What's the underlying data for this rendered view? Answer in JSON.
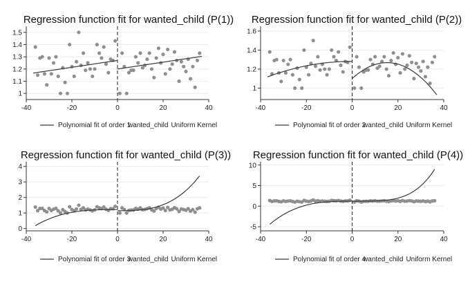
{
  "chart_data": [
    {
      "type": "scatter",
      "title": "Regression function fit for wanted_child (P(1))",
      "order": 1,
      "cutoff": 0,
      "xlim": [
        -40,
        40
      ],
      "ylim": [
        0.95,
        1.55
      ],
      "xticks": [
        -40,
        -20,
        0,
        20,
        40
      ],
      "xtick_labels": [
        "-40",
        "-20",
        "0",
        "20",
        "40"
      ],
      "yticks": [
        1,
        1.1,
        1.2,
        1.3,
        1.4,
        1.5
      ],
      "ytick_labels": [
        "1",
        "1.1",
        "1.2",
        "1.3",
        "1.4",
        "1.5"
      ],
      "legend": [
        "Polynomial fit of order 1",
        "wanted_child",
        "Uniform Kernel"
      ],
      "points": [
        [
          -36,
          1.38
        ],
        [
          -35,
          1.15
        ],
        [
          -34,
          1.29
        ],
        [
          -33,
          1.3
        ],
        [
          -32,
          1.16
        ],
        [
          -31,
          1.07
        ],
        [
          -30,
          1.29
        ],
        [
          -29,
          1.16
        ],
        [
          -28,
          1.25
        ],
        [
          -27,
          1.3
        ],
        [
          -26,
          1.14
        ],
        [
          -25,
          1.0
        ],
        [
          -24,
          1.21
        ],
        [
          -23,
          1.09
        ],
        [
          -22,
          1.0
        ],
        [
          -21,
          1.4
        ],
        [
          -20,
          1.22
        ],
        [
          -19,
          1.14
        ],
        [
          -18,
          1.26
        ],
        [
          -17,
          1.5
        ],
        [
          -16,
          1.23
        ],
        [
          -15,
          1.33
        ],
        [
          -14,
          1.19
        ],
        [
          -13,
          1.25
        ],
        [
          -12,
          1.2
        ],
        [
          -11,
          1.14
        ],
        [
          -10,
          1.2
        ],
        [
          -9,
          1.4
        ],
        [
          -8,
          1.33
        ],
        [
          -7,
          1.29
        ],
        [
          -6,
          1.38
        ],
        [
          -5,
          1.24
        ],
        [
          -4,
          1.17
        ],
        [
          -3,
          1.28
        ],
        [
          -2,
          1.27
        ],
        [
          -1,
          1.43
        ],
        [
          1,
          1.0
        ],
        [
          2,
          1.33
        ],
        [
          3,
          1.22
        ],
        [
          4,
          1.0
        ],
        [
          5,
          1.17
        ],
        [
          6,
          1.19
        ],
        [
          7,
          1.19
        ],
        [
          8,
          1.3
        ],
        [
          9,
          1.25
        ],
        [
          10,
          1.33
        ],
        [
          11,
          1.21
        ],
        [
          12,
          1.23
        ],
        [
          13,
          1.28
        ],
        [
          14,
          1.33
        ],
        [
          15,
          1.2
        ],
        [
          16,
          1.13
        ],
        [
          17,
          1.29
        ],
        [
          18,
          1.37
        ],
        [
          19,
          1.25
        ],
        [
          20,
          1.32
        ],
        [
          21,
          1.16
        ],
        [
          22,
          1.36
        ],
        [
          23,
          1.2
        ],
        [
          24,
          1.24
        ],
        [
          25,
          1.34
        ],
        [
          26,
          1.27
        ],
        [
          27,
          1.1
        ],
        [
          28,
          1.26
        ],
        [
          29,
          1.22
        ],
        [
          30,
          1.18
        ],
        [
          31,
          1.28
        ],
        [
          32,
          1.12
        ],
        [
          33,
          1.22
        ],
        [
          34,
          1.05
        ],
        [
          35,
          1.27
        ],
        [
          36,
          1.33
        ]
      ],
      "fit_left": {
        "x": [
          -37,
          0
        ],
        "coef": [
          1.27,
          0.0028
        ]
      },
      "fit_right": {
        "x": [
          0,
          37
        ],
        "coef": [
          1.2,
          0.0028
        ]
      }
    },
    {
      "type": "scatter",
      "title": "Regression function fit for wanted_child (P(2))",
      "order": 2,
      "cutoff": 0,
      "xlim": [
        -40,
        40
      ],
      "ylim": [
        0.88,
        1.65
      ],
      "xticks": [
        -40,
        -20,
        0,
        20,
        40
      ],
      "xtick_labels": [
        "-40",
        "-20",
        "0",
        "20",
        "40"
      ],
      "yticks": [
        1,
        1.2,
        1.4,
        1.6
      ],
      "ytick_labels": [
        "1",
        "1.2",
        "1.4",
        "1.6"
      ],
      "legend": [
        "Polynomial fit of order 2",
        "wanted_child",
        "Uniform Kernel"
      ],
      "points": [
        [
          -36,
          1.38
        ],
        [
          -35,
          1.15
        ],
        [
          -34,
          1.29
        ],
        [
          -33,
          1.3
        ],
        [
          -32,
          1.16
        ],
        [
          -31,
          1.07
        ],
        [
          -30,
          1.29
        ],
        [
          -29,
          1.16
        ],
        [
          -28,
          1.25
        ],
        [
          -27,
          1.3
        ],
        [
          -26,
          1.14
        ],
        [
          -25,
          1.0
        ],
        [
          -24,
          1.21
        ],
        [
          -23,
          1.09
        ],
        [
          -22,
          1.0
        ],
        [
          -21,
          1.4
        ],
        [
          -20,
          1.22
        ],
        [
          -19,
          1.14
        ],
        [
          -18,
          1.26
        ],
        [
          -17,
          1.5
        ],
        [
          -16,
          1.23
        ],
        [
          -15,
          1.33
        ],
        [
          -14,
          1.19
        ],
        [
          -13,
          1.25
        ],
        [
          -12,
          1.2
        ],
        [
          -11,
          1.14
        ],
        [
          -10,
          1.2
        ],
        [
          -9,
          1.4
        ],
        [
          -8,
          1.33
        ],
        [
          -7,
          1.29
        ],
        [
          -6,
          1.38
        ],
        [
          -5,
          1.24
        ],
        [
          -4,
          1.17
        ],
        [
          -3,
          1.28
        ],
        [
          -2,
          1.27
        ],
        [
          -1,
          1.43
        ],
        [
          1,
          1.0
        ],
        [
          2,
          1.33
        ],
        [
          3,
          1.22
        ],
        [
          4,
          1.0
        ],
        [
          5,
          1.17
        ],
        [
          6,
          1.19
        ],
        [
          7,
          1.19
        ],
        [
          8,
          1.3
        ],
        [
          9,
          1.25
        ],
        [
          10,
          1.33
        ],
        [
          11,
          1.21
        ],
        [
          12,
          1.23
        ],
        [
          13,
          1.28
        ],
        [
          14,
          1.33
        ],
        [
          15,
          1.2
        ],
        [
          16,
          1.13
        ],
        [
          17,
          1.29
        ],
        [
          18,
          1.37
        ],
        [
          19,
          1.25
        ],
        [
          20,
          1.32
        ],
        [
          21,
          1.16
        ],
        [
          22,
          1.36
        ],
        [
          23,
          1.2
        ],
        [
          24,
          1.24
        ],
        [
          25,
          1.34
        ],
        [
          26,
          1.27
        ],
        [
          27,
          1.1
        ],
        [
          28,
          1.26
        ],
        [
          29,
          1.22
        ],
        [
          30,
          1.18
        ],
        [
          31,
          1.28
        ],
        [
          32,
          1.12
        ],
        [
          33,
          1.22
        ],
        [
          34,
          1.05
        ],
        [
          35,
          1.27
        ],
        [
          36,
          1.33
        ]
      ],
      "fit_left": {
        "x": [
          -37,
          0
        ],
        "coef": [
          1.28,
          -0.0002,
          -0.000124
        ]
      },
      "fit_right": {
        "x": [
          0,
          37
        ],
        "coef": [
          1.1,
          0.022,
          -0.00072
        ]
      }
    },
    {
      "type": "scatter",
      "title": "Regression function fit for wanted_child (P(3))",
      "order": 3,
      "cutoff": 0,
      "xlim": [
        -40,
        40
      ],
      "ylim": [
        -0.15,
        4.3
      ],
      "xticks": [
        -40,
        -20,
        0,
        20,
        40
      ],
      "xtick_labels": [
        "-40",
        "-20",
        "0",
        "20",
        "40"
      ],
      "yticks": [
        0,
        1,
        2,
        3,
        4
      ],
      "ytick_labels": [
        "0",
        "1",
        "2",
        "3",
        "4"
      ],
      "legend": [
        "Polynomial fit of order 3",
        "wanted_child",
        "Uniform Kernel"
      ],
      "points": [
        [
          -36,
          1.38
        ],
        [
          -35,
          1.15
        ],
        [
          -34,
          1.29
        ],
        [
          -33,
          1.3
        ],
        [
          -32,
          1.16
        ],
        [
          -31,
          1.07
        ],
        [
          -30,
          1.29
        ],
        [
          -29,
          1.16
        ],
        [
          -28,
          1.25
        ],
        [
          -27,
          1.3
        ],
        [
          -26,
          1.14
        ],
        [
          -25,
          1.0
        ],
        [
          -24,
          1.21
        ],
        [
          -23,
          1.09
        ],
        [
          -22,
          1.0
        ],
        [
          -21,
          1.4
        ],
        [
          -20,
          1.22
        ],
        [
          -19,
          1.14
        ],
        [
          -18,
          1.26
        ],
        [
          -17,
          1.5
        ],
        [
          -16,
          1.23
        ],
        [
          -15,
          1.33
        ],
        [
          -14,
          1.19
        ],
        [
          -13,
          1.25
        ],
        [
          -12,
          1.2
        ],
        [
          -11,
          1.14
        ],
        [
          -10,
          1.2
        ],
        [
          -9,
          1.4
        ],
        [
          -8,
          1.33
        ],
        [
          -7,
          1.29
        ],
        [
          -6,
          1.38
        ],
        [
          -5,
          1.24
        ],
        [
          -4,
          1.17
        ],
        [
          -3,
          1.28
        ],
        [
          -2,
          1.27
        ],
        [
          -1,
          1.43
        ],
        [
          1,
          1.0
        ],
        [
          2,
          1.33
        ],
        [
          3,
          1.22
        ],
        [
          4,
          1.0
        ],
        [
          5,
          1.17
        ],
        [
          6,
          1.19
        ],
        [
          7,
          1.19
        ],
        [
          8,
          1.3
        ],
        [
          9,
          1.25
        ],
        [
          10,
          1.33
        ],
        [
          11,
          1.21
        ],
        [
          12,
          1.23
        ],
        [
          13,
          1.28
        ],
        [
          14,
          1.33
        ],
        [
          15,
          1.2
        ],
        [
          16,
          1.13
        ],
        [
          17,
          1.29
        ],
        [
          18,
          1.37
        ],
        [
          19,
          1.25
        ],
        [
          20,
          1.32
        ],
        [
          21,
          1.16
        ],
        [
          22,
          1.36
        ],
        [
          23,
          1.2
        ],
        [
          24,
          1.24
        ],
        [
          25,
          1.34
        ],
        [
          26,
          1.27
        ],
        [
          27,
          1.1
        ],
        [
          28,
          1.26
        ],
        [
          29,
          1.22
        ],
        [
          30,
          1.18
        ],
        [
          31,
          1.28
        ],
        [
          32,
          1.12
        ],
        [
          33,
          1.22
        ],
        [
          34,
          1.05
        ],
        [
          35,
          1.27
        ],
        [
          36,
          1.33
        ]
      ],
      "fit_left": {
        "x": [
          -36,
          0
        ],
        "coef": [
          1.22,
          0,
          0,
          2.22e-05
        ]
      },
      "fit_right": {
        "x": [
          0,
          36
        ],
        "coef": [
          1.15,
          0,
          0,
          4.8e-05
        ]
      }
    },
    {
      "type": "scatter",
      "title": "Regression function fit for wanted_child (P(4))",
      "order": 4,
      "cutoff": 0,
      "xlim": [
        -40,
        40
      ],
      "ylim": [
        -6,
        10.8
      ],
      "xticks": [
        -40,
        -20,
        0,
        20,
        40
      ],
      "xtick_labels": [
        "-40",
        "-20",
        "0",
        "20",
        "40"
      ],
      "yticks": [
        -5,
        0,
        5,
        10
      ],
      "ytick_labels": [
        "-5",
        "0",
        "5",
        "10"
      ],
      "legend": [
        "Polynomial fit of order 4",
        "wanted_child",
        "Uniform Kernel"
      ],
      "points": [
        [
          -36,
          1.38
        ],
        [
          -35,
          1.15
        ],
        [
          -34,
          1.29
        ],
        [
          -33,
          1.3
        ],
        [
          -32,
          1.16
        ],
        [
          -31,
          1.07
        ],
        [
          -30,
          1.29
        ],
        [
          -29,
          1.16
        ],
        [
          -28,
          1.25
        ],
        [
          -27,
          1.3
        ],
        [
          -26,
          1.14
        ],
        [
          -25,
          1.0
        ],
        [
          -24,
          1.21
        ],
        [
          -23,
          1.09
        ],
        [
          -22,
          1.0
        ],
        [
          -21,
          1.4
        ],
        [
          -20,
          1.22
        ],
        [
          -19,
          1.14
        ],
        [
          -18,
          1.26
        ],
        [
          -17,
          1.5
        ],
        [
          -16,
          1.23
        ],
        [
          -15,
          1.33
        ],
        [
          -14,
          1.19
        ],
        [
          -13,
          1.25
        ],
        [
          -12,
          1.2
        ],
        [
          -11,
          1.14
        ],
        [
          -10,
          1.2
        ],
        [
          -9,
          1.4
        ],
        [
          -8,
          1.33
        ],
        [
          -7,
          1.29
        ],
        [
          -6,
          1.38
        ],
        [
          -5,
          1.24
        ],
        [
          -4,
          1.17
        ],
        [
          -3,
          1.28
        ],
        [
          -2,
          1.27
        ],
        [
          -1,
          1.43
        ],
        [
          1,
          1.0
        ],
        [
          2,
          1.33
        ],
        [
          3,
          1.22
        ],
        [
          4,
          1.0
        ],
        [
          5,
          1.17
        ],
        [
          6,
          1.19
        ],
        [
          7,
          1.19
        ],
        [
          8,
          1.3
        ],
        [
          9,
          1.25
        ],
        [
          10,
          1.33
        ],
        [
          11,
          1.21
        ],
        [
          12,
          1.23
        ],
        [
          13,
          1.28
        ],
        [
          14,
          1.33
        ],
        [
          15,
          1.2
        ],
        [
          16,
          1.13
        ],
        [
          17,
          1.29
        ],
        [
          18,
          1.37
        ],
        [
          19,
          1.25
        ],
        [
          20,
          1.32
        ],
        [
          21,
          1.16
        ],
        [
          22,
          1.36
        ],
        [
          23,
          1.2
        ],
        [
          24,
          1.24
        ],
        [
          25,
          1.34
        ],
        [
          26,
          1.27
        ],
        [
          27,
          1.1
        ],
        [
          28,
          1.26
        ],
        [
          29,
          1.22
        ],
        [
          30,
          1.18
        ],
        [
          31,
          1.28
        ],
        [
          32,
          1.12
        ],
        [
          33,
          1.22
        ],
        [
          34,
          1.05
        ],
        [
          35,
          1.27
        ],
        [
          36,
          1.33
        ]
      ],
      "fit_left": {
        "x": [
          -36,
          0
        ],
        "coef": [
          1.22,
          0,
          0,
          0.0001208,
          0
        ]
      },
      "fit_right": {
        "x": [
          0,
          36
        ],
        "coef": [
          1.22,
          0,
          0,
          0,
          4.6e-06
        ]
      }
    }
  ],
  "colors": {
    "points": "#8f8f8f",
    "fit_line": "#3a3a3a",
    "cutoff_line": "#222222",
    "grid": "#ececec",
    "axis": "#333333"
  }
}
